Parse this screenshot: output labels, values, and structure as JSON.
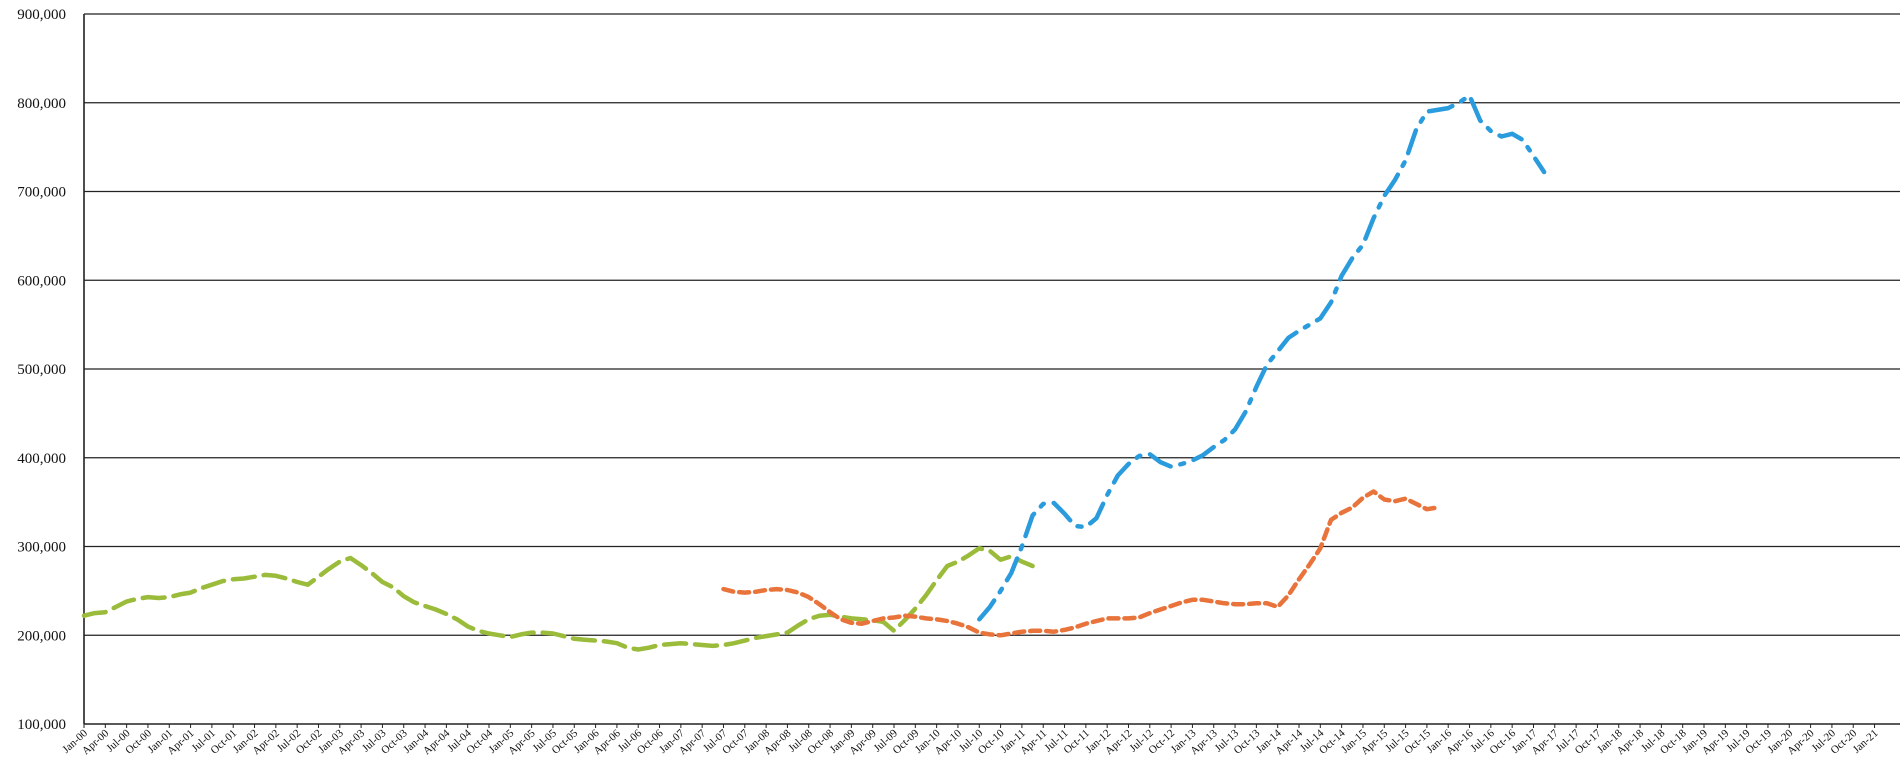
{
  "chart_data": {
    "type": "line",
    "title": "",
    "xlabel": "",
    "ylabel": "",
    "ylim": [
      100000,
      900000
    ],
    "yticks": [
      "100,000",
      "200,000",
      "300,000",
      "400,000",
      "500,000",
      "600,000",
      "700,000",
      "800,000",
      "900,000"
    ],
    "ytick_values": [
      100000,
      200000,
      300000,
      400000,
      500000,
      600000,
      700000,
      800000,
      900000
    ],
    "grid": "horizontal",
    "legend": "none",
    "x_tick_labels": [
      "Jan-00",
      "Apr-00",
      "Jul-00",
      "Oct-00",
      "Jan-01",
      "Apr-01",
      "Jul-01",
      "Oct-01",
      "Jan-02",
      "Apr-02",
      "Jul-02",
      "Oct-02",
      "Jan-03",
      "Apr-03",
      "Jul-03",
      "Oct-03",
      "Jan-04",
      "Apr-04",
      "Jul-04",
      "Oct-04",
      "Jan-05",
      "Apr-05",
      "Jul-05",
      "Oct-05",
      "Jan-06",
      "Apr-06",
      "Jul-06",
      "Oct-06",
      "Jan-07",
      "Apr-07",
      "Jul-07",
      "Oct-07",
      "Jan-08",
      "Apr-08",
      "Jul-08",
      "Oct-08",
      "Jan-09",
      "Apr-09",
      "Jul-09",
      "Oct-09",
      "Jan-10",
      "Apr-10",
      "Jul-10",
      "Oct-10",
      "Jan-11",
      "Apr-11",
      "Jul-11",
      "Oct-11",
      "Jan-12",
      "Apr-12",
      "Jul-12",
      "Oct-12",
      "Jan-13",
      "Apr-13",
      "Jul-13",
      "Oct-13",
      "Jan-14",
      "Apr-14",
      "Jul-14",
      "Oct-14",
      "Jan-15",
      "Apr-15",
      "Jul-15",
      "Oct-15",
      "Jan-16",
      "Apr-16",
      "Jul-16",
      "Oct-16",
      "Jan-17",
      "Apr-17",
      "Jul-17",
      "Oct-17",
      "Jan-18",
      "Apr-18",
      "Jul-18",
      "Oct-18",
      "Jan-19",
      "Apr-19",
      "Jul-19",
      "Oct-19",
      "Jan-20",
      "Apr-20",
      "Jul-20",
      "Oct-20",
      "Jan-21"
    ],
    "series": [
      {
        "color": "#9bbb3b",
        "style": "long-dash",
        "start": "Jan-00",
        "values": [
          222000,
          225000,
          226000,
          232000,
          238000,
          241000,
          243000,
          242000,
          243000,
          246000,
          248000,
          253000,
          257000,
          261000,
          263000,
          264000,
          266000,
          268000,
          267000,
          264000,
          260000,
          257000,
          266000,
          275000,
          283000,
          287000,
          279000,
          270000,
          260000,
          254000,
          244000,
          237000,
          233000,
          229000,
          224000,
          218000,
          210000,
          205000,
          202000,
          200000,
          198000,
          201000,
          203000,
          203000,
          202000,
          199000,
          196000,
          195000,
          194000,
          193000,
          191000,
          186000,
          184000,
          186000,
          189000,
          190000,
          191000,
          190000,
          189000,
          188000,
          189000,
          191000,
          194000,
          197000,
          199000,
          201000,
          203000,
          211000,
          218000,
          222000,
          223000,
          221000,
          219000,
          218000,
          217000,
          215000,
          205000,
          217000,
          230000,
          245000,
          262000,
          278000,
          283000,
          290000,
          298000,
          295000,
          285000,
          289000,
          283000,
          278000
        ]
      },
      {
        "color": "#e8743b",
        "style": "dash",
        "start": "Jul-07",
        "values": [
          252000,
          249000,
          248000,
          249000,
          251000,
          252000,
          251000,
          248000,
          243000,
          235000,
          226000,
          218000,
          214000,
          213000,
          216000,
          219000,
          220000,
          222000,
          221000,
          219000,
          218000,
          216000,
          213000,
          209000,
          203000,
          201000,
          200000,
          202000,
          204000,
          205000,
          205000,
          204000,
          206000,
          209000,
          213000,
          216000,
          219000,
          219000,
          219000,
          220000,
          225000,
          229000,
          233000,
          237000,
          240000,
          240000,
          238000,
          236000,
          235000,
          235000,
          236000,
          236000,
          232000,
          245000,
          263000,
          280000,
          298000,
          330000,
          338000,
          344000,
          355000,
          362000,
          353000,
          351000,
          354000,
          348000,
          342000,
          344000
        ]
      },
      {
        "color": "#2a9bdc",
        "style": "dash-dot",
        "start": "Jul-10",
        "values": [
          218000,
          232000,
          250000,
          270000,
          300000,
          335000,
          348000,
          349000,
          337000,
          323000,
          322000,
          332000,
          358000,
          380000,
          393000,
          402000,
          404000,
          395000,
          390000,
          393000,
          397000,
          403000,
          412000,
          420000,
          432000,
          452000,
          480000,
          505000,
          520000,
          535000,
          543000,
          550000,
          557000,
          575000,
          605000,
          625000,
          640000,
          670000,
          695000,
          713000,
          735000,
          770000,
          790000,
          792000,
          794000,
          800000,
          808000,
          780000,
          768000,
          762000,
          765000,
          758000,
          740000,
          722000
        ]
      }
    ]
  }
}
